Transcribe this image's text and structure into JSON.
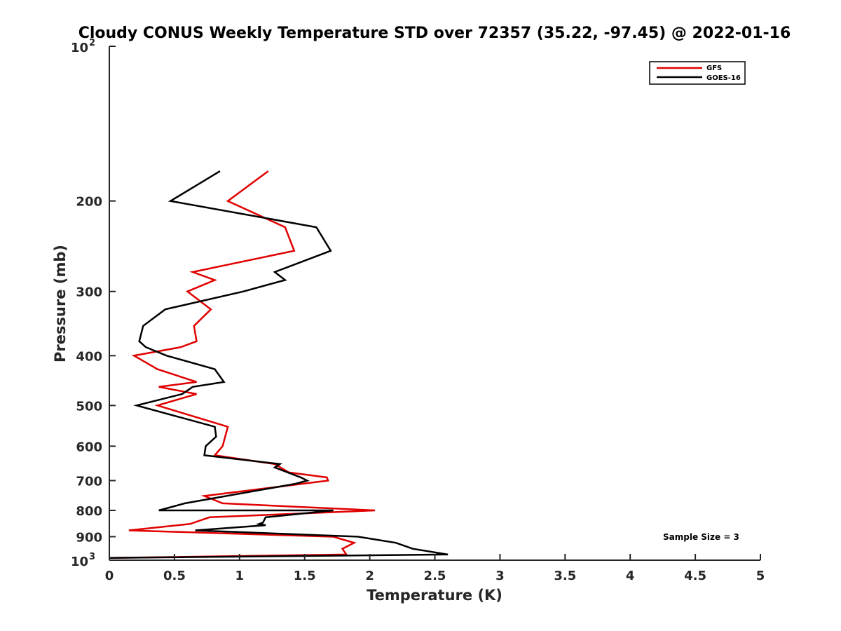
{
  "chart_data": {
    "type": "line",
    "title": "Cloudy CONUS Weekly Temperature STD over 72357 (35.22, -97.45) @ 2022-01-16",
    "xlabel": "Temperature (K)",
    "ylabel": "Pressure (mb)",
    "xlim": [
      0,
      5
    ],
    "ylim": [
      100,
      1000
    ],
    "yscale": "log",
    "y_reversed": true,
    "x_ticks": [
      "0",
      "0.5",
      "1",
      "1.5",
      "2",
      "2.5",
      "3",
      "3.5",
      "4",
      "4.5",
      "5"
    ],
    "x_tick_values": [
      0,
      0.5,
      1,
      1.5,
      2,
      2.5,
      3,
      3.5,
      4,
      4.5,
      5
    ],
    "y_ticks": [
      {
        "value": 100,
        "base": "10",
        "exp": "2"
      },
      {
        "value": 200,
        "label": "200"
      },
      {
        "value": 300,
        "label": "300"
      },
      {
        "value": 400,
        "label": "400"
      },
      {
        "value": 500,
        "label": "500"
      },
      {
        "value": 600,
        "label": "600"
      },
      {
        "value": 700,
        "label": "700"
      },
      {
        "value": 800,
        "label": "800"
      },
      {
        "value": 900,
        "label": "900"
      },
      {
        "value": 1000,
        "base": "10",
        "exp": "3"
      }
    ],
    "grid": false,
    "legend_position": "top-right",
    "annotation": "Sample Size = 3",
    "series": [
      {
        "name": "GFS",
        "color": "#e00000",
        "points": [
          [
            1.22,
            175
          ],
          [
            0.91,
            200
          ],
          [
            1.35,
            225
          ],
          [
            1.42,
            250
          ],
          [
            0.64,
            275
          ],
          [
            0.81,
            285
          ],
          [
            0.6,
            300
          ],
          [
            0.78,
            325
          ],
          [
            0.65,
            350
          ],
          [
            0.67,
            375
          ],
          [
            0.55,
            385
          ],
          [
            0.19,
            400
          ],
          [
            0.37,
            425
          ],
          [
            0.67,
            450
          ],
          [
            0.38,
            460
          ],
          [
            0.67,
            475
          ],
          [
            0.37,
            500
          ],
          [
            0.91,
            550
          ],
          [
            0.87,
            600
          ],
          [
            0.81,
            625
          ],
          [
            1.27,
            650
          ],
          [
            1.38,
            675
          ],
          [
            1.67,
            690
          ],
          [
            1.68,
            700
          ],
          [
            0.73,
            750
          ],
          [
            0.87,
            775
          ],
          [
            2.04,
            800
          ],
          [
            0.77,
            825
          ],
          [
            0.62,
            850
          ],
          [
            0.15,
            875
          ],
          [
            1.72,
            900
          ],
          [
            1.88,
            925
          ],
          [
            1.79,
            950
          ],
          [
            1.82,
            975
          ],
          [
            0.0,
            990
          ]
        ]
      },
      {
        "name": "GOES-16",
        "color": "#000000",
        "points": [
          [
            0.85,
            175
          ],
          [
            0.47,
            200
          ],
          [
            1.59,
            225
          ],
          [
            1.7,
            250
          ],
          [
            1.27,
            275
          ],
          [
            1.35,
            285
          ],
          [
            1.03,
            300
          ],
          [
            0.43,
            325
          ],
          [
            0.26,
            350
          ],
          [
            0.23,
            375
          ],
          [
            0.28,
            385
          ],
          [
            0.44,
            400
          ],
          [
            0.81,
            425
          ],
          [
            0.88,
            450
          ],
          [
            0.64,
            460
          ],
          [
            0.56,
            475
          ],
          [
            0.21,
            500
          ],
          [
            0.81,
            550
          ],
          [
            0.82,
            575
          ],
          [
            0.74,
            600
          ],
          [
            0.73,
            625
          ],
          [
            1.31,
            650
          ],
          [
            1.27,
            660
          ],
          [
            1.47,
            690
          ],
          [
            1.52,
            700
          ],
          [
            1.43,
            710
          ],
          [
            0.58,
            775
          ],
          [
            0.38,
            800
          ],
          [
            1.72,
            800
          ],
          [
            1.2,
            825
          ],
          [
            1.18,
            845
          ],
          [
            1.15,
            850
          ],
          [
            1.2,
            855
          ],
          [
            0.66,
            875
          ],
          [
            1.91,
            900
          ],
          [
            2.2,
            925
          ],
          [
            2.33,
            950
          ],
          [
            2.6,
            975
          ],
          [
            0.0,
            990
          ]
        ]
      }
    ]
  }
}
